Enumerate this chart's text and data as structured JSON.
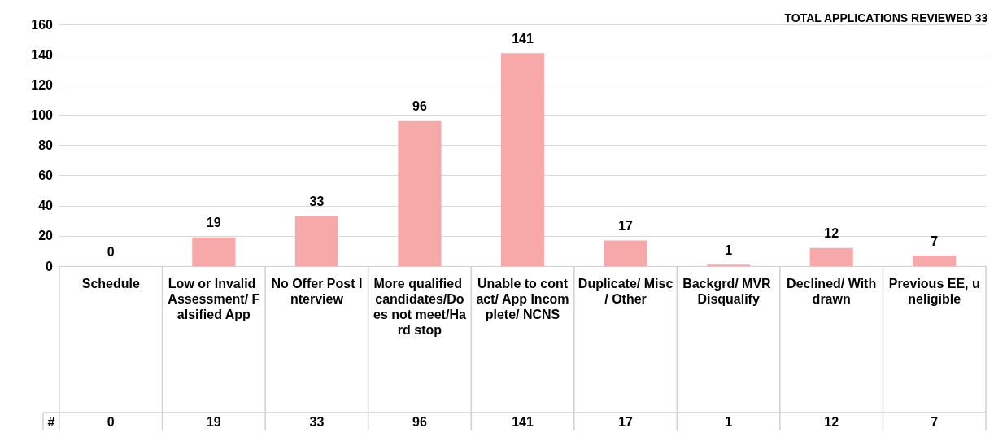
{
  "chart_data": {
    "type": "bar",
    "title": "TOTAL APPLICATIONS REVIEWED 33",
    "categories": [
      "Schedule",
      "Low or Invalid Assessment/ Falsified App",
      "No Offer Post Interview",
      "More qualified candidates/Does not meet/Hard stop",
      "Unable to contact/ App Incomplete/ NCNS",
      "Duplicate/ Misc/ Other",
      "Backgrd/ MVR Disqualify",
      "Declined/ Withdrawn",
      "Previous EE, uneligible"
    ],
    "values": [
      0,
      19,
      33,
      96,
      141,
      17,
      1,
      12,
      7
    ],
    "value_labels": [
      "0",
      "19",
      "33",
      "96",
      "141",
      "17",
      "1",
      "12",
      "7"
    ],
    "color": "#f7a8a8",
    "ylim": [
      0,
      160
    ],
    "yticks": [
      0,
      20,
      40,
      60,
      80,
      100,
      120,
      140,
      160
    ],
    "grid": "y",
    "data_labels": true,
    "annotations": [
      "#"
    ]
  }
}
